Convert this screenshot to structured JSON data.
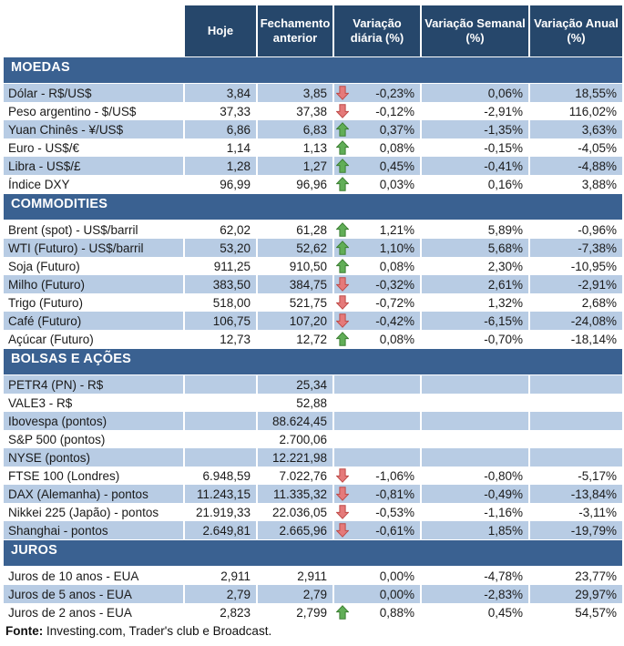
{
  "header": {
    "columns": [
      "Hoje",
      "Fechamento anterior",
      "Variação diária (%)",
      "Variação Semanal (%)",
      "Variação Anual (%)"
    ]
  },
  "sections": [
    {
      "title": "MOEDAS",
      "first_row_shaded": true,
      "rows": [
        {
          "label": "Dólar - R$/US$",
          "hoje": "3,84",
          "fechamento": "3,85",
          "arrow": "down",
          "var_diaria": "-0,23%",
          "var_semanal": "0,06%",
          "var_anual": "18,55%"
        },
        {
          "label": "Peso argentino - $/US$",
          "hoje": "37,33",
          "fechamento": "37,38",
          "arrow": "down",
          "var_diaria": "-0,12%",
          "var_semanal": "-2,91%",
          "var_anual": "116,02%"
        },
        {
          "label": "Yuan Chinês - ¥/US$",
          "hoje": "6,86",
          "fechamento": "6,83",
          "arrow": "up",
          "var_diaria": "0,37%",
          "var_semanal": "-1,35%",
          "var_anual": "3,63%"
        },
        {
          "label": "Euro - US$/€",
          "hoje": "1,14",
          "fechamento": "1,13",
          "arrow": "up",
          "var_diaria": "0,08%",
          "var_semanal": "-0,15%",
          "var_anual": "-4,05%"
        },
        {
          "label": "Libra - US$/£",
          "hoje": "1,28",
          "fechamento": "1,27",
          "arrow": "up",
          "var_diaria": "0,45%",
          "var_semanal": "-0,41%",
          "var_anual": "-4,88%"
        },
        {
          "label": "Índice DXY",
          "hoje": "96,99",
          "fechamento": "96,96",
          "arrow": "up",
          "var_diaria": "0,03%",
          "var_semanal": "0,16%",
          "var_anual": "3,88%"
        }
      ]
    },
    {
      "title": "COMMODITIES",
      "first_row_shaded": false,
      "rows": [
        {
          "label": "Brent (spot) - US$/barril",
          "hoje": "62,02",
          "fechamento": "61,28",
          "arrow": "up",
          "var_diaria": "1,21%",
          "var_semanal": "5,89%",
          "var_anual": "-0,96%"
        },
        {
          "label": "WTI (Futuro) - US$/barril",
          "hoje": "53,20",
          "fechamento": "52,62",
          "arrow": "up",
          "var_diaria": "1,10%",
          "var_semanal": "5,68%",
          "var_anual": "-7,38%"
        },
        {
          "label": "Soja (Futuro)",
          "hoje": "911,25",
          "fechamento": "910,50",
          "arrow": "up",
          "var_diaria": "0,08%",
          "var_semanal": "2,30%",
          "var_anual": "-10,95%"
        },
        {
          "label": "Milho (Futuro)",
          "hoje": "383,50",
          "fechamento": "384,75",
          "arrow": "down",
          "var_diaria": "-0,32%",
          "var_semanal": "2,61%",
          "var_anual": "-2,91%"
        },
        {
          "label": "Trigo (Futuro)",
          "hoje": "518,00",
          "fechamento": "521,75",
          "arrow": "down",
          "var_diaria": "-0,72%",
          "var_semanal": "1,32%",
          "var_anual": "2,68%"
        },
        {
          "label": "Café (Futuro)",
          "hoje": "106,75",
          "fechamento": "107,20",
          "arrow": "down",
          "var_diaria": "-0,42%",
          "var_semanal": "-6,15%",
          "var_anual": "-24,08%"
        },
        {
          "label": "Açúcar (Futuro)",
          "hoje": "12,73",
          "fechamento": "12,72",
          "arrow": "up",
          "var_diaria": "0,08%",
          "var_semanal": "-0,70%",
          "var_anual": "-18,14%"
        }
      ]
    },
    {
      "title": "BOLSAS E AÇÕES",
      "first_row_shaded": true,
      "rows": [
        {
          "label": "PETR4 (PN) - R$",
          "hoje": "",
          "fechamento": "25,34",
          "arrow": "none",
          "var_diaria": "",
          "var_semanal": "",
          "var_anual": ""
        },
        {
          "label": "VALE3 - R$",
          "hoje": "",
          "fechamento": "52,88",
          "arrow": "none",
          "var_diaria": "",
          "var_semanal": "",
          "var_anual": ""
        },
        {
          "label": "Ibovespa (pontos)",
          "hoje": "",
          "fechamento": "88.624,45",
          "arrow": "none",
          "var_diaria": "",
          "var_semanal": "",
          "var_anual": ""
        },
        {
          "label": "S&P 500 (pontos)",
          "hoje": "",
          "fechamento": "2.700,06",
          "arrow": "none",
          "var_diaria": "",
          "var_semanal": "",
          "var_anual": ""
        },
        {
          "label": "NYSE (pontos)",
          "hoje": "",
          "fechamento": "12.221,98",
          "arrow": "none",
          "var_diaria": "",
          "var_semanal": "",
          "var_anual": ""
        },
        {
          "label": "FTSE 100 (Londres)",
          "hoje": "6.948,59",
          "fechamento": "7.022,76",
          "arrow": "down",
          "var_diaria": "-1,06%",
          "var_semanal": "-0,80%",
          "var_anual": "-5,17%"
        },
        {
          "label": "DAX (Alemanha) - pontos",
          "hoje": "11.243,15",
          "fechamento": "11.335,32",
          "arrow": "down",
          "var_diaria": "-0,81%",
          "var_semanal": "-0,49%",
          "var_anual": "-13,84%"
        },
        {
          "label": "Nikkei 225 (Japão) - pontos",
          "hoje": "21.919,33",
          "fechamento": "22.036,05",
          "arrow": "down",
          "var_diaria": "-0,53%",
          "var_semanal": "-1,16%",
          "var_anual": "-3,11%"
        },
        {
          "label": "Shanghai - pontos",
          "hoje": "2.649,81",
          "fechamento": "2.665,96",
          "arrow": "down",
          "var_diaria": "-0,61%",
          "var_semanal": "1,85%",
          "var_anual": "-19,79%"
        }
      ]
    },
    {
      "title": "JUROS",
      "first_row_shaded": false,
      "rows": [
        {
          "label": "Juros de 10 anos - EUA",
          "hoje": "2,911",
          "fechamento": "2,911",
          "arrow": "none",
          "var_diaria": "0,00%",
          "var_semanal": "-4,78%",
          "var_anual": "23,77%"
        },
        {
          "label": "Juros de 5 anos - EUA",
          "hoje": "2,79",
          "fechamento": "2,79",
          "arrow": "none",
          "var_diaria": "0,00%",
          "var_semanal": "-2,83%",
          "var_anual": "29,97%"
        },
        {
          "label": "Juros de 2 anos - EUA",
          "hoje": "2,823",
          "fechamento": "2,799",
          "arrow": "up",
          "var_diaria": "0,88%",
          "var_semanal": "0,45%",
          "var_anual": "54,57%"
        }
      ]
    }
  ],
  "footer": {
    "label": "Fonte:",
    "text": " Investing.com, Trader's club e Broadcast."
  },
  "colors": {
    "header_bg": "#26476B",
    "section_bg": "#3A6191",
    "shaded_row": "#B8CCE4",
    "arrow_up_fill": "#61AE57",
    "arrow_up_border": "#3C7F33",
    "arrow_down_fill": "#E57A7A",
    "arrow_down_border": "#BE4B48"
  },
  "icons": {
    "up": "up-arrow-icon",
    "down": "down-arrow-icon"
  }
}
